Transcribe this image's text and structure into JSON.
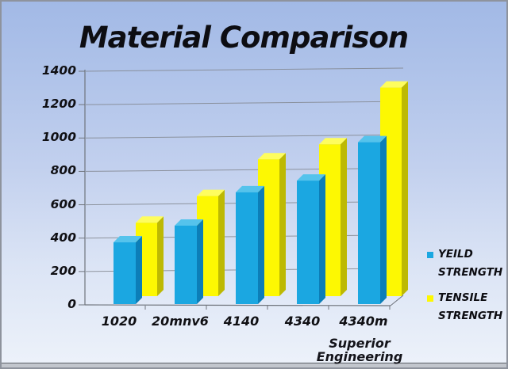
{
  "title": "Material Comparison",
  "watermark": {
    "line1": "Superior",
    "line2": "Engineering"
  },
  "colors": {
    "background_top": "#a2b9e6",
    "background_bottom": "#edf2fa",
    "grid": "#82878f",
    "axis": "#6f747c",
    "text": "#0d0d12",
    "blue_front": "#1ba7e1",
    "blue_top": "#55c3ec",
    "blue_side": "#0c7eb8",
    "yellow_front": "#fdf802",
    "yellow_top": "#fefd5e",
    "yellow_side": "#bdb903"
  },
  "chart_data": {
    "type": "bar",
    "style": "3d-clustered-column",
    "title": "Material Comparison",
    "categories": [
      "1020",
      "20mnv6",
      "4140",
      "4340",
      "4340m"
    ],
    "series": [
      {
        "name": "YEILD STRENGTH",
        "color": "#1ba7e1",
        "values": [
          370,
          470,
          670,
          740,
          970
        ]
      },
      {
        "name": "TENSILE STRENGTH",
        "color": "#fdf802",
        "values": [
          440,
          600,
          820,
          910,
          1250
        ]
      }
    ],
    "xlabel": "",
    "ylabel": "",
    "ylim": [
      0,
      1400
    ],
    "ytick_step": 200,
    "grid": true,
    "legend_position": "right",
    "annotation": "Superior Engineering"
  }
}
